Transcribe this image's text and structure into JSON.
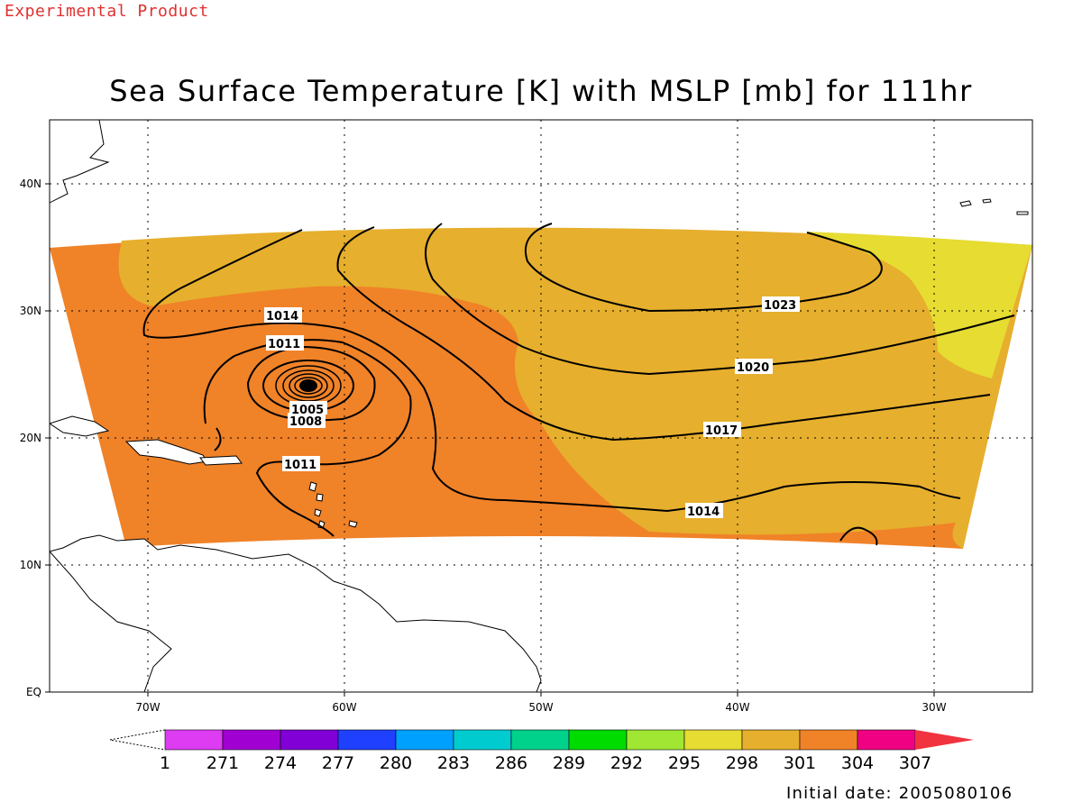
{
  "header": {
    "experimental_label": "Experimental Product",
    "title": "Sea Surface Temperature [K] with MSLP [mb] for 111hr",
    "initial_date": "Initial date: 2005080106"
  },
  "map": {
    "lat_labels": [
      "40N",
      "30N",
      "20N",
      "10N",
      "EQ"
    ],
    "lon_labels": [
      "70W",
      "60W",
      "50W",
      "40W",
      "30W"
    ],
    "mslp_contour_labels": [
      "1023",
      "1020",
      "1017",
      "1014",
      "1014",
      "1011",
      "1011",
      "1008",
      "1005"
    ]
  },
  "colorbar": {
    "labels": [
      "1",
      "271",
      "274",
      "277",
      "280",
      "283",
      "286",
      "289",
      "292",
      "295",
      "298",
      "301",
      "304",
      "307"
    ],
    "colors": [
      "#dd3cf2",
      "#a100d2",
      "#8000d6",
      "#2040ff",
      "#00a0ff",
      "#00ccd0",
      "#00d28c",
      "#00dc00",
      "#a0e632",
      "#e6dc32",
      "#e6af2d",
      "#f08228",
      "#f00082",
      "#f0333e"
    ]
  },
  "colors": {
    "sst_304": "#f08228",
    "sst_301": "#e6af2d",
    "sst_298": "#e6dc32",
    "accent_red": "#e03030"
  }
}
